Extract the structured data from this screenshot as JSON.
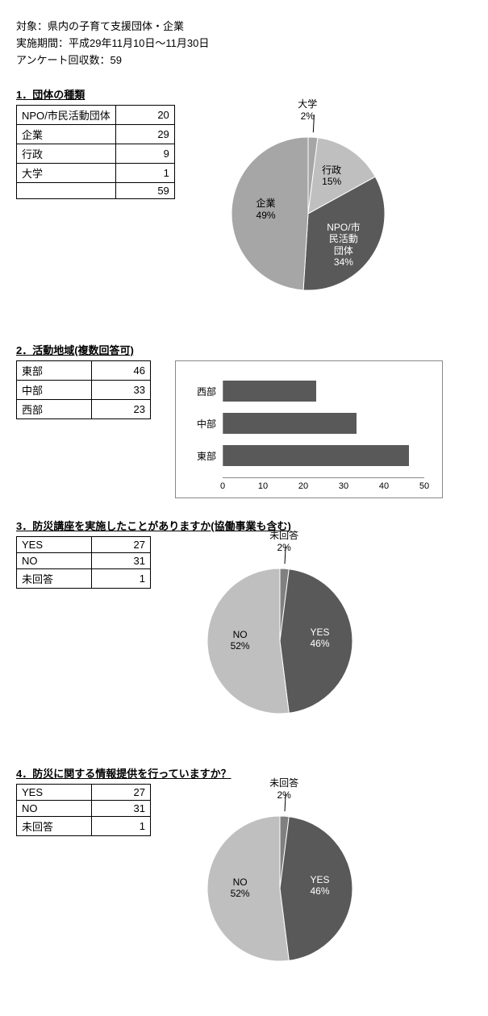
{
  "header": {
    "line1": "対象：県内の子育て支援団体・企業",
    "line2": "実施期間：平成29年11月10日～11月30日",
    "line3": "アンケート回収数：59"
  },
  "section1": {
    "title": "1．団体の種類",
    "table": {
      "rows": [
        {
          "label": "NPO/市民活動団体",
          "value": 20
        },
        {
          "label": "企業",
          "value": 29
        },
        {
          "label": "行政",
          "value": 9
        },
        {
          "label": "大学",
          "value": 1
        }
      ],
      "total": 59
    },
    "pie": {
      "type": "pie",
      "radius": 95,
      "slices": [
        {
          "label": "大学",
          "value": 2,
          "color": "#a6a6a6",
          "text_color": "#000",
          "external": true
        },
        {
          "label": "行政",
          "value": 15,
          "color": "#bfbfbf",
          "text_color": "#000"
        },
        {
          "label": "NPO/市民活動団体",
          "value": 34,
          "color": "#595959",
          "text_color": "#fff",
          "multiline": [
            "NPO/市",
            "民活動",
            "団体"
          ]
        },
        {
          "label": "企業",
          "value": 49,
          "color": "#a6a6a6",
          "text_color": "#000"
        }
      ],
      "background_color": "#ffffff"
    }
  },
  "section2": {
    "title": "2．活動地域(複数回答可)",
    "table": {
      "rows": [
        {
          "label": "東部",
          "value": 46
        },
        {
          "label": "中部",
          "value": 33
        },
        {
          "label": "西部",
          "value": 23
        }
      ]
    },
    "bar": {
      "type": "bar-horizontal",
      "xmax": 50,
      "xtick_step": 10,
      "ticks": [
        0,
        10,
        20,
        30,
        40,
        50
      ],
      "bar_color": "#595959",
      "border_color": "#888888",
      "rows": [
        {
          "label": "西部",
          "value": 23
        },
        {
          "label": "中部",
          "value": 33
        },
        {
          "label": "東部",
          "value": 46
        }
      ]
    }
  },
  "section3": {
    "title": "3．防災講座を実施したことがありますか(協働事業も含む)",
    "table": {
      "rows": [
        {
          "label": "YES",
          "value": 27
        },
        {
          "label": "NO",
          "value": 31
        },
        {
          "label": "未回答",
          "value": 1
        }
      ]
    },
    "pie": {
      "type": "pie",
      "radius": 90,
      "slices": [
        {
          "label": "未回答",
          "value": 2,
          "color": "#808080",
          "text_color": "#000",
          "external": true
        },
        {
          "label": "YES",
          "value": 46,
          "color": "#595959",
          "text_color": "#fff"
        },
        {
          "label": "NO",
          "value": 52,
          "color": "#bfbfbf",
          "text_color": "#000"
        }
      ]
    }
  },
  "section4": {
    "title": "4．防災に関する情報提供を行っていますか？",
    "table": {
      "rows": [
        {
          "label": "YES",
          "value": 27
        },
        {
          "label": "NO",
          "value": 31
        },
        {
          "label": "未回答",
          "value": 1
        }
      ]
    },
    "pie": {
      "type": "pie",
      "radius": 90,
      "slices": [
        {
          "label": "未回答",
          "value": 2,
          "color": "#808080",
          "text_color": "#000",
          "external": true
        },
        {
          "label": "YES",
          "value": 46,
          "color": "#595959",
          "text_color": "#fff"
        },
        {
          "label": "NO",
          "value": 52,
          "color": "#bfbfbf",
          "text_color": "#000"
        }
      ]
    }
  }
}
